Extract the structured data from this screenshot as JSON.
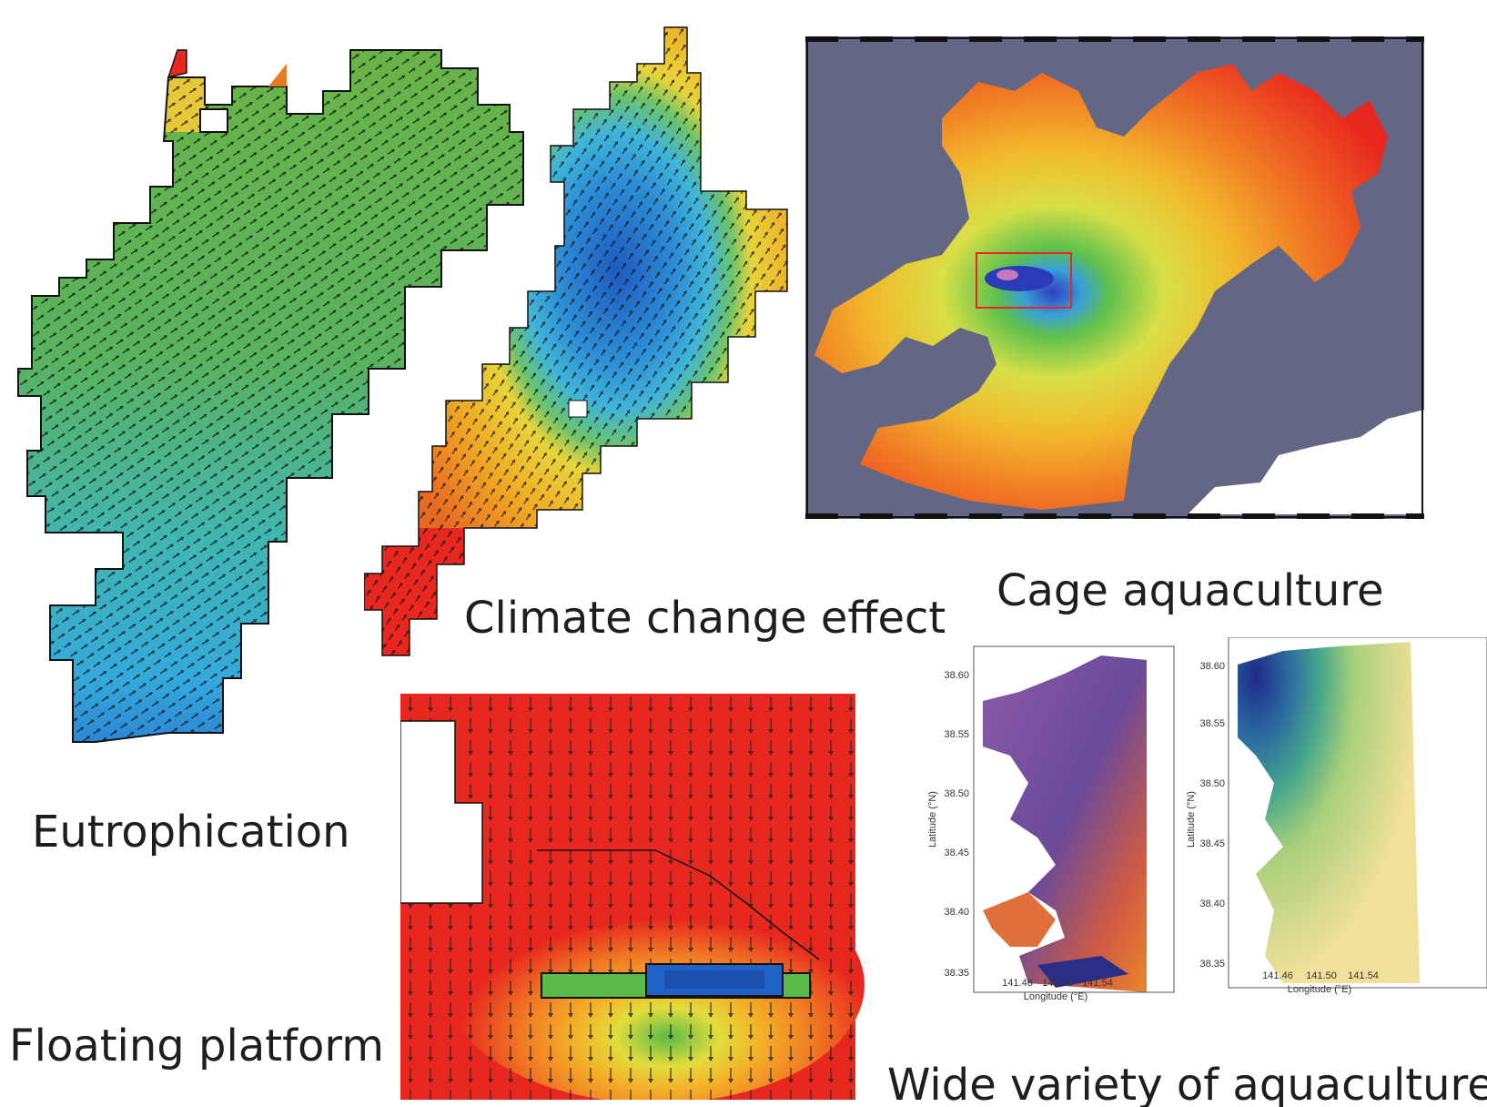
{
  "captions": {
    "eutrophication": "Eutrophication",
    "climate": "Climate change effect",
    "cage": "Cage aquaculture",
    "floating": "Floating platform",
    "variety": "Wide variety of aquaculture"
  },
  "panels": {
    "left_map": {
      "lat_label": "Latitude (°N)",
      "lon_label": "Longitude (°E)",
      "lat_ticks": [
        "38.60",
        "38.55",
        "38.50",
        "38.45",
        "38.40",
        "38.35"
      ],
      "lon_ticks": [
        "141.46",
        "141.50",
        "141.54"
      ]
    },
    "right_map": {
      "lat_label": "Latitude (°N)",
      "lon_label": "Longitude (°E)",
      "lat_ticks": [
        "38.60",
        "38.55",
        "38.50",
        "38.45",
        "38.40",
        "38.35"
      ],
      "lon_ticks": [
        "141.46",
        "141.50",
        "141.54"
      ]
    }
  },
  "colors": {
    "red": "#e8281e",
    "orange": "#f08a22",
    "yellow": "#efd23a",
    "green": "#5cbb48",
    "cyan": "#34b7da",
    "blue": "#1f63c6",
    "slate": "#636784",
    "purple": "#6a4a9a"
  }
}
